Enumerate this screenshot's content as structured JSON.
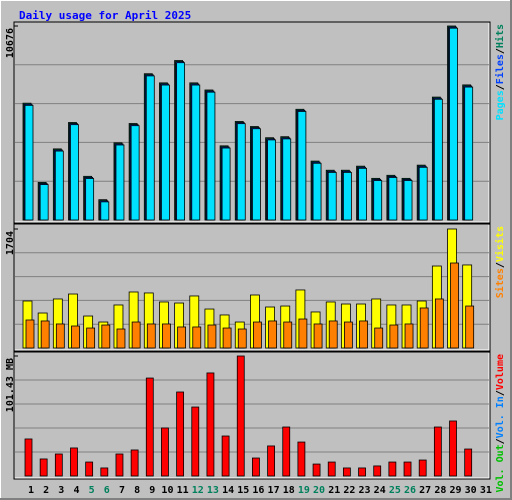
{
  "chart_data": [
    {
      "type": "bar",
      "title": "Daily usage for April 2025",
      "legend_separator": "/",
      "ylim": [
        0,
        10676
      ],
      "yticks": [
        10676
      ],
      "series": [
        {
          "name": "Hits",
          "color": "#00805c",
          "values": [
            6429,
            2068,
            3913,
            5366,
            2404,
            1118,
            4248,
            5310,
            8050,
            7547,
            8776,
            7547,
            7155,
            4081,
            5422,
            5143,
            4528,
            4584,
            6093,
            3242,
            2739,
            2739,
            2963,
            2292,
            2460,
            2292,
            3019,
            6764,
            10676,
            7435,
            null
          ]
        },
        {
          "name": "Files",
          "color": "#0040ff",
          "values": [
            6369,
            2008,
            3853,
            5306,
            2344,
            1058,
            4188,
            5250,
            7990,
            7487,
            8716,
            7487,
            7095,
            4021,
            5362,
            5083,
            4468,
            4524,
            6033,
            3182,
            2679,
            2679,
            2903,
            2232,
            2400,
            2232,
            2959,
            6704,
            10616,
            7375,
            null
          ]
        },
        {
          "name": "Pages",
          "color": "#00e0ff",
          "values": [
            6309,
            1948,
            3793,
            5246,
            2284,
            998,
            4128,
            5190,
            7930,
            7427,
            8656,
            7427,
            7035,
            3961,
            5302,
            5023,
            4408,
            4464,
            5973,
            3122,
            2619,
            2619,
            2843,
            2172,
            2340,
            2172,
            2899,
            6644,
            10556,
            7315,
            null
          ]
        }
      ]
    },
    {
      "type": "bar",
      "ylim": [
        0,
        1704
      ],
      "yticks": [
        1704
      ],
      "series": [
        {
          "name": "Visits",
          "color": "#ffff00",
          "values": [
            673,
            501,
            702,
            773,
            458,
            372,
            616,
            802,
            788,
            659,
            644,
            745,
            558,
            473,
            372,
            759,
            587,
            601,
            831,
            516,
            659,
            630,
            630,
            702,
            616,
            616,
            673,
            1174,
            1704,
            1189,
            null
          ]
        },
        {
          "name": "Sites",
          "color": "#ff8000",
          "values": [
            401,
            387,
            344,
            315,
            286,
            329,
            272,
            372,
            344,
            344,
            301,
            301,
            329,
            286,
            272,
            372,
            387,
            372,
            415,
            344,
            387,
            372,
            387,
            286,
            329,
            344,
            573,
            702,
            1217,
            601,
            null
          ]
        }
      ]
    },
    {
      "type": "bar",
      "ylim": [
        0,
        101.43
      ],
      "yticks": [
        {
          "value": 101.43,
          "label": "101.43 MB"
        }
      ],
      "series": [
        {
          "name": "Volume",
          "color": "#ff0000",
          "values": [
            31.3,
            14.4,
            18.6,
            23.7,
            11.8,
            6.8,
            18.6,
            22.0,
            82.8,
            40.6,
            71.0,
            58.3,
            87.1,
            33.8,
            101.43,
            15.2,
            25.4,
            41.4,
            28.7,
            10.1,
            11.8,
            6.8,
            6.8,
            8.5,
            11.8,
            11.8,
            13.5,
            41.4,
            46.5,
            22.8,
            null
          ]
        }
      ],
      "legend_only": [
        {
          "name": "Vol. In",
          "color": "#0080ff"
        },
        {
          "name": "Vol. Out",
          "color": "#00c000"
        }
      ],
      "categories": [
        "1",
        "2",
        "3",
        "4",
        "5",
        "6",
        "7",
        "8",
        "9",
        "10",
        "11",
        "12",
        "13",
        "14",
        "15",
        "16",
        "17",
        "18",
        "19",
        "20",
        "21",
        "22",
        "23",
        "24",
        "25",
        "26",
        "27",
        "28",
        "29",
        "30",
        "31"
      ],
      "category_colors": [
        "#000000",
        "#000000",
        "#000000",
        "#000000",
        "#00805c",
        "#00805c",
        "#000000",
        "#000000",
        "#000000",
        "#000000",
        "#000000",
        "#00805c",
        "#00805c",
        "#000000",
        "#000000",
        "#000000",
        "#000000",
        "#000000",
        "#00805c",
        "#00805c",
        "#000000",
        "#000000",
        "#000000",
        "#000000",
        "#00805c",
        "#00805c",
        "#000000",
        "#000000",
        "#000000",
        "#000000",
        "#000000"
      ]
    }
  ]
}
